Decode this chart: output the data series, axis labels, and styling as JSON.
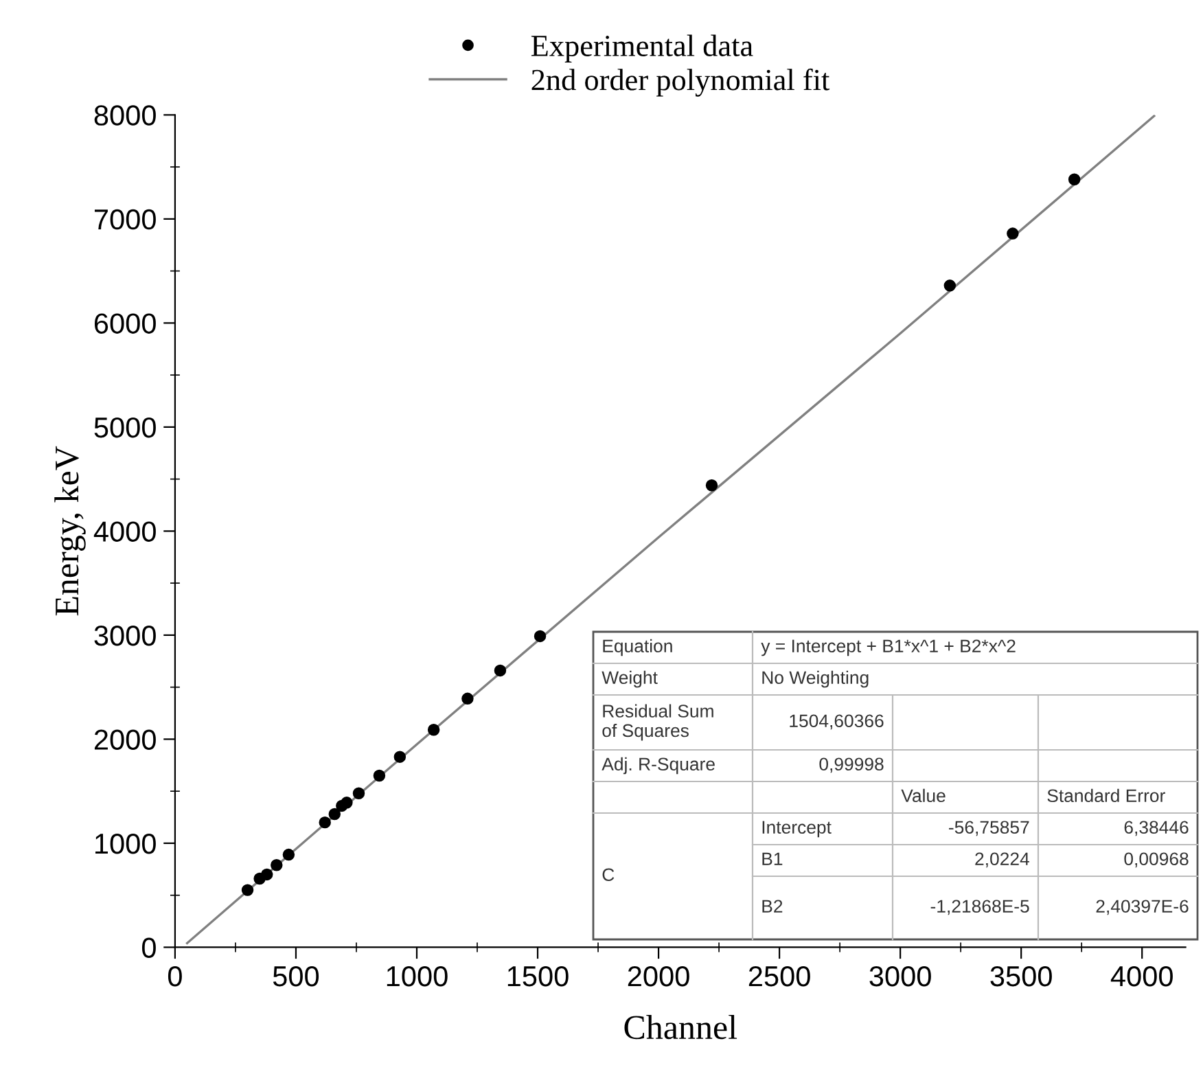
{
  "chart_data": {
    "type": "scatter",
    "xlabel": "Channel",
    "ylabel": "Energy, keV",
    "xlim": [
      0,
      4180
    ],
    "ylim": [
      0,
      8000
    ],
    "xticks": [
      0,
      500,
      1000,
      1500,
      2000,
      2500,
      3000,
      3500,
      4000
    ],
    "yticks": [
      0,
      1000,
      2000,
      3000,
      4000,
      5000,
      6000,
      7000,
      8000
    ],
    "grid": false,
    "legend": "top",
    "series": [
      {
        "name": "Experimental data",
        "marker": "circle",
        "color": "#000000",
        "x": [
          300,
          350,
          380,
          420,
          470,
          620,
          660,
          690,
          710,
          760,
          845,
          930,
          1070,
          1210,
          1345,
          1510,
          2220,
          3205,
          3465,
          3720
        ],
        "values": [
          550,
          660,
          700,
          790,
          890,
          1200,
          1280,
          1360,
          1390,
          1480,
          1650,
          1830,
          2090,
          2390,
          2660,
          2990,
          4440,
          6360,
          6860,
          7380
        ]
      },
      {
        "name": "2nd order polynomial fit",
        "type": "line",
        "marker": "none",
        "line_style": "solid",
        "color": "#808080",
        "x": [
          50,
          1000,
          2000,
          3000,
          4050
        ],
        "values": [
          40,
          1950,
          3940,
          5900,
          7990
        ]
      }
    ],
    "annotations": [
      "Equation",
      "y = Intercept + B1*x^1 + B2*x^2",
      "Weight",
      "No Weighting",
      "Residual Sum\nof Squares",
      "1504,60366",
      "Adj. R-Square",
      "0,99998",
      "Value",
      "Standard Error",
      "C",
      "Intercept",
      "-56,75857",
      "6,38446",
      "B1",
      "2,0224",
      "0,00968",
      "B2",
      "-1,21868E-5",
      "2,40397E-6"
    ]
  }
}
